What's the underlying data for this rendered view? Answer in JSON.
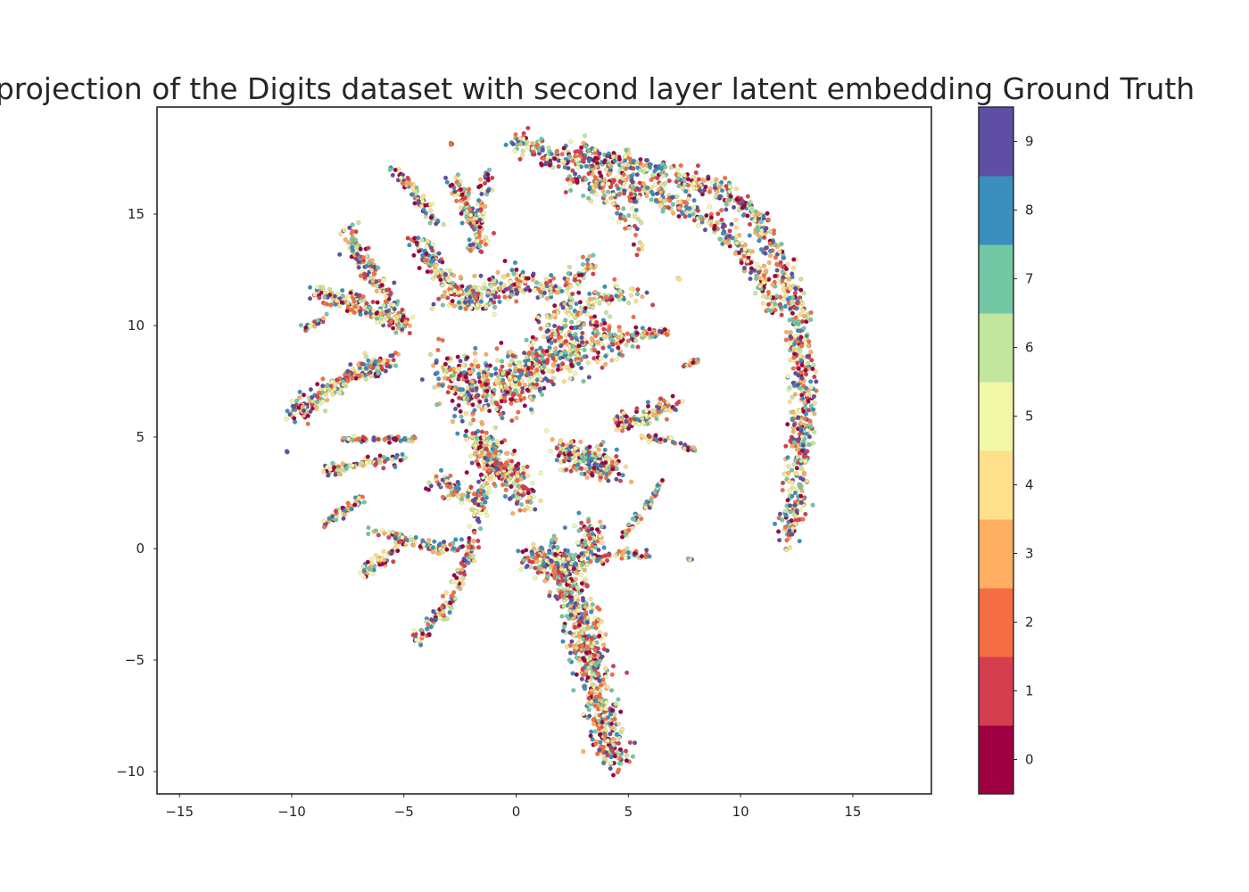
{
  "chart_data": {
    "type": "scatter",
    "title": "projection of the Digits dataset with second layer latent embedding Ground Truth",
    "xlabel": "",
    "ylabel": "",
    "xlim": [
      -16.0,
      18.5
    ],
    "ylim": [
      -11.0,
      19.8
    ],
    "x_ticks": [
      -15,
      -10,
      -5,
      0,
      5,
      10,
      15
    ],
    "x_tick_labels": [
      "−15",
      "−10",
      "−5",
      "0",
      "5",
      "10",
      "15"
    ],
    "y_ticks": [
      -10,
      -5,
      0,
      5,
      10,
      15
    ],
    "y_tick_labels": [
      "−10",
      "−5",
      "0",
      "5",
      "10",
      "15"
    ],
    "grid": false,
    "colorbar": {
      "colormap": "Spectral",
      "range": [
        -0.5,
        9.5
      ],
      "ticks": [
        0,
        1,
        2,
        3,
        4,
        5,
        6,
        7,
        8,
        9
      ],
      "tick_labels": [
        "0",
        "1",
        "2",
        "3",
        "4",
        "5",
        "6",
        "7",
        "8",
        "9"
      ],
      "colors": [
        "#9e0142",
        "#d53e4f",
        "#f46d43",
        "#fdae61",
        "#fee08b",
        "#f0f8a8",
        "#c2e69d",
        "#72c7a5",
        "#3a8fbe",
        "#5e4fa2"
      ]
    },
    "clusters": [
      {
        "name": "arc-right",
        "points": [
          [
            0.0,
            18.3
          ],
          [
            1.5,
            17.5
          ],
          [
            3.0,
            17.6
          ],
          [
            5.0,
            17.2
          ],
          [
            7.0,
            16.7
          ],
          [
            9.0,
            16.2
          ],
          [
            10.5,
            15.0
          ],
          [
            11.6,
            13.5
          ],
          [
            12.3,
            11.5
          ],
          [
            12.7,
            9.0
          ],
          [
            12.8,
            6.5
          ],
          [
            12.6,
            4.0
          ],
          [
            12.4,
            2.0
          ],
          [
            12.0,
            0.3
          ]
        ],
        "width": 0.55,
        "count": 900
      },
      {
        "name": "arc-inner",
        "points": [
          [
            2.5,
            16.5
          ],
          [
            4.5,
            16.2
          ],
          [
            6.5,
            15.8
          ],
          [
            8.5,
            14.8
          ],
          [
            10.0,
            13.5
          ],
          [
            11.0,
            12.0
          ],
          [
            11.6,
            10.5
          ]
        ],
        "width": 0.5,
        "count": 350
      },
      {
        "name": "top-spray",
        "points": [
          [
            3.0,
            18.0
          ],
          [
            4.0,
            16.0
          ],
          [
            5.0,
            14.5
          ]
        ],
        "width": 0.35,
        "count": 60
      },
      {
        "name": "top-spray-2",
        "points": [
          [
            5.0,
            18.0
          ],
          [
            5.2,
            16.0
          ],
          [
            5.5,
            13.2
          ]
        ],
        "width": 0.25,
        "count": 40
      },
      {
        "name": "bottom-tail",
        "points": [
          [
            1.5,
            0.0
          ],
          [
            2.5,
            -2.0
          ],
          [
            3.0,
            -4.0
          ],
          [
            3.5,
            -6.0
          ],
          [
            4.0,
            -8.0
          ],
          [
            4.5,
            -9.5
          ]
        ],
        "width": 0.75,
        "count": 700
      },
      {
        "name": "bottom-fan",
        "points": [
          [
            0.5,
            -0.5
          ],
          [
            2.0,
            -1.0
          ],
          [
            3.0,
            -0.5
          ],
          [
            3.5,
            1.0
          ]
        ],
        "width": 0.6,
        "count": 200
      },
      {
        "name": "bottom-arm-right",
        "points": [
          [
            3.5,
            -0.5
          ],
          [
            4.5,
            -0.2
          ],
          [
            5.8,
            -0.3
          ]
        ],
        "width": 0.2,
        "count": 40
      },
      {
        "name": "bottom-arm-up",
        "points": [
          [
            4.8,
            0.5
          ],
          [
            5.5,
            1.5
          ],
          [
            6.5,
            3.0
          ]
        ],
        "width": 0.18,
        "count": 50
      },
      {
        "name": "left-long-tail",
        "points": [
          [
            -4.5,
            -4.2
          ],
          [
            -3.0,
            -2.5
          ],
          [
            -2.0,
            0.0
          ],
          [
            -1.5,
            2.5
          ],
          [
            -1.0,
            5.0
          ]
        ],
        "width": 0.3,
        "count": 200
      },
      {
        "name": "center-blob",
        "points": [
          [
            -3.0,
            8.0
          ],
          [
            -1.5,
            7.0
          ],
          [
            0.0,
            7.5
          ],
          [
            1.5,
            8.5
          ],
          [
            3.0,
            9.5
          ],
          [
            4.0,
            9.5
          ]
        ],
        "width": 1.3,
        "count": 700
      },
      {
        "name": "center-lower",
        "points": [
          [
            -2.0,
            5.0
          ],
          [
            -1.0,
            4.0
          ],
          [
            0.0,
            3.0
          ],
          [
            0.5,
            2.0
          ]
        ],
        "width": 0.7,
        "count": 250
      },
      {
        "name": "mid-right-blob",
        "points": [
          [
            2.0,
            4.5
          ],
          [
            3.0,
            4.0
          ],
          [
            4.5,
            3.5
          ]
        ],
        "width": 0.8,
        "count": 200
      },
      {
        "name": "mid-right-arm",
        "points": [
          [
            4.5,
            5.5
          ],
          [
            6.0,
            6.0
          ],
          [
            7.0,
            6.5
          ]
        ],
        "width": 0.4,
        "count": 120
      },
      {
        "name": "mid-right-branch",
        "points": [
          [
            5.5,
            5.0
          ],
          [
            7.0,
            4.8
          ],
          [
            8.0,
            4.4
          ]
        ],
        "width": 0.18,
        "count": 40
      },
      {
        "name": "right-arm-upper",
        "points": [
          [
            4.0,
            9.5
          ],
          [
            5.5,
            9.6
          ],
          [
            6.8,
            9.7
          ]
        ],
        "width": 0.25,
        "count": 60
      },
      {
        "name": "left-arm-1",
        "points": [
          [
            -10.0,
            6.0
          ],
          [
            -8.5,
            7.0
          ],
          [
            -7.0,
            8.0
          ],
          [
            -5.5,
            8.5
          ]
        ],
        "width": 0.45,
        "count": 220
      },
      {
        "name": "left-arm-2",
        "points": [
          [
            -9.0,
            11.5
          ],
          [
            -7.0,
            11.0
          ],
          [
            -5.0,
            10.0
          ]
        ],
        "width": 0.45,
        "count": 160
      },
      {
        "name": "left-arm-3",
        "points": [
          [
            -7.5,
            14.3
          ],
          [
            -6.5,
            12.5
          ],
          [
            -5.0,
            10.0
          ]
        ],
        "width": 0.45,
        "count": 150
      },
      {
        "name": "left-arm-4",
        "points": [
          [
            -7.8,
            4.9
          ],
          [
            -6.0,
            4.9
          ],
          [
            -4.5,
            4.9
          ]
        ],
        "width": 0.12,
        "count": 60
      },
      {
        "name": "left-arm-5",
        "points": [
          [
            -8.5,
            3.5
          ],
          [
            -7.0,
            3.8
          ],
          [
            -5.0,
            4.0
          ]
        ],
        "width": 0.3,
        "count": 80
      },
      {
        "name": "left-arm-6",
        "points": [
          [
            -8.7,
            1.0
          ],
          [
            -7.5,
            1.8
          ],
          [
            -6.8,
            2.3
          ]
        ],
        "width": 0.2,
        "count": 50
      },
      {
        "name": "left-arm-7",
        "points": [
          [
            -7.0,
            -1.2
          ],
          [
            -6.0,
            -0.5
          ],
          [
            -5.0,
            0.5
          ]
        ],
        "width": 0.3,
        "count": 60
      },
      {
        "name": "left-arm-8",
        "points": [
          [
            -6.5,
            0.8
          ],
          [
            -5.0,
            0.5
          ],
          [
            -3.5,
            0.0
          ],
          [
            -2.5,
            0.2
          ]
        ],
        "width": 0.3,
        "count": 90
      },
      {
        "name": "left-branch-9",
        "points": [
          [
            -9.5,
            9.8
          ],
          [
            -8.5,
            10.3
          ]
        ],
        "width": 0.15,
        "count": 20
      },
      {
        "name": "top-branch-1",
        "points": [
          [
            -5.5,
            17.0
          ],
          [
            -4.5,
            16.0
          ],
          [
            -3.5,
            14.5
          ]
        ],
        "width": 0.25,
        "count": 70
      },
      {
        "name": "top-branch-2",
        "points": [
          [
            -2.8,
            16.5
          ],
          [
            -2.0,
            15.0
          ],
          [
            -1.5,
            13.5
          ]
        ],
        "width": 0.35,
        "count": 100
      },
      {
        "name": "top-branch-3",
        "points": [
          [
            -1.3,
            16.8
          ],
          [
            -1.5,
            15.0
          ],
          [
            -2.0,
            13.5
          ]
        ],
        "width": 0.3,
        "count": 60
      },
      {
        "name": "top-center",
        "points": [
          [
            -3.0,
            11.0
          ],
          [
            -1.0,
            11.5
          ],
          [
            0.5,
            12.0
          ]
        ],
        "width": 0.7,
        "count": 180
      },
      {
        "name": "upper-mid",
        "points": [
          [
            -4.5,
            14.0
          ],
          [
            -3.5,
            12.5
          ],
          [
            -2.0,
            11.0
          ]
        ],
        "width": 0.5,
        "count": 120
      },
      {
        "name": "upper-right-mid",
        "points": [
          [
            1.0,
            11.5
          ],
          [
            2.5,
            12.0
          ],
          [
            3.5,
            13.0
          ]
        ],
        "width": 0.45,
        "count": 80
      },
      {
        "name": "upper-right-cross",
        "points": [
          [
            1.0,
            10.0
          ],
          [
            2.5,
            11.0
          ],
          [
            4.5,
            11.5
          ],
          [
            5.8,
            11.3
          ]
        ],
        "width": 0.4,
        "count": 90
      },
      {
        "name": "lower-center-left",
        "points": [
          [
            -3.5,
            3.0
          ],
          [
            -2.5,
            2.5
          ],
          [
            -1.5,
            2.0
          ]
        ],
        "width": 0.5,
        "count": 80
      },
      {
        "name": "right-small",
        "points": [
          [
            7.5,
            8.2
          ],
          [
            8.1,
            8.4
          ]
        ],
        "width": 0.1,
        "count": 15
      },
      {
        "name": "iso-1",
        "points": [
          [
            -10.2,
            4.3
          ],
          [
            -10.2,
            4.3
          ]
        ],
        "width": 0.05,
        "count": 3
      },
      {
        "name": "iso-2",
        "points": [
          [
            7.5,
            -0.4
          ],
          [
            7.8,
            -0.5
          ]
        ],
        "width": 0.05,
        "count": 5
      },
      {
        "name": "iso-3",
        "points": [
          [
            -2.9,
            18.1
          ],
          [
            -2.9,
            18.2
          ]
        ],
        "width": 0.05,
        "count": 3
      },
      {
        "name": "iso-4",
        "points": [
          [
            7.2,
            12.1
          ],
          [
            7.3,
            12.1
          ]
        ],
        "width": 0.05,
        "count": 3
      }
    ]
  }
}
